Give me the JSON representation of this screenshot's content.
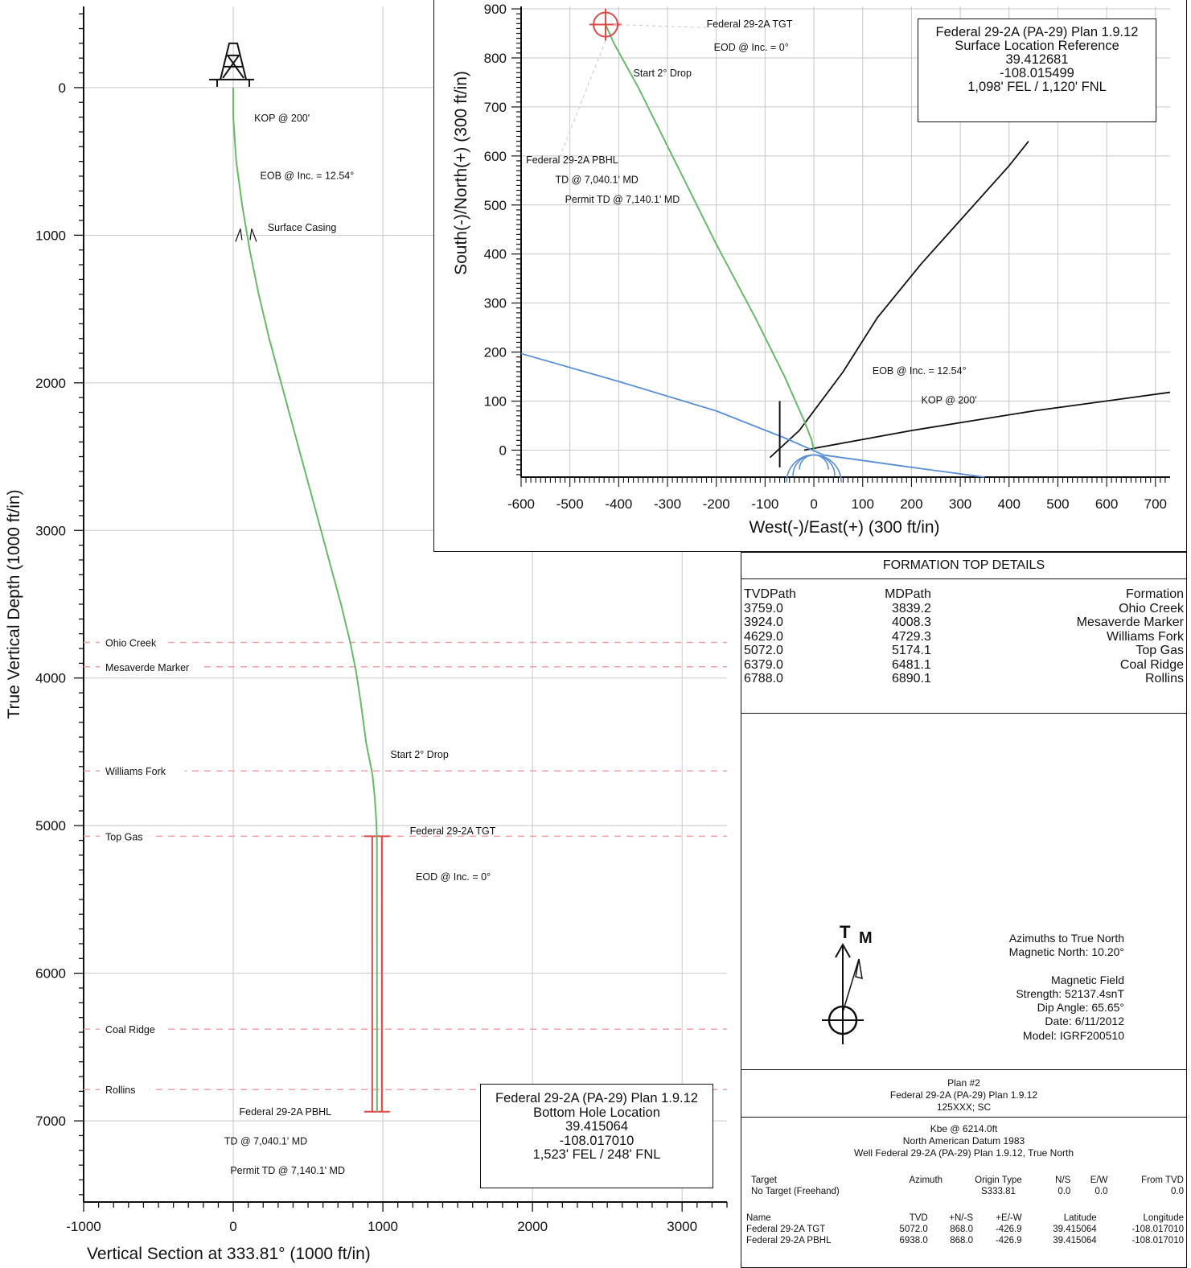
{
  "chart_data": [
    {
      "type": "line",
      "name": "vertical_section",
      "xlabel": "Vertical Section at 333.81° (1000 ft/in)",
      "ylabel": "True Vertical Depth (1000 ft/in)",
      "xlim": [
        -1000,
        3300
      ],
      "ylim": [
        7550,
        -550
      ],
      "y_inverted": true,
      "grid": true,
      "x_ticks": [
        -1000,
        0,
        1000,
        2000,
        3000
      ],
      "y_ticks": [
        0,
        1000,
        2000,
        3000,
        4000,
        5000,
        6000,
        7000
      ],
      "x_tick_labels": [
        "-1000",
        "0",
        "1000",
        "2000",
        "3000"
      ],
      "y_tick_labels": [
        "0",
        "1000",
        "2000",
        "3000",
        "4000",
        "5000",
        "6000",
        "7000"
      ],
      "series": [
        {
          "color": "#6ab96a",
          "x": [
            0,
            0,
            20,
            60,
            110,
            170,
            240,
            320,
            400,
            480,
            560,
            640,
            720,
            780,
            820,
            850,
            870,
            890,
            910,
            930,
            945,
            955,
            960,
            961,
            961
          ],
          "y": [
            0,
            200,
            500,
            800,
            1100,
            1400,
            1700,
            2000,
            2300,
            2600,
            2900,
            3200,
            3500,
            3750,
            3950,
            4150,
            4300,
            4450,
            4550,
            4650,
            4800,
            4950,
            5072,
            6500,
            6938
          ]
        }
      ],
      "formation_lines": [
        {
          "label": "Ohio Creek",
          "tvd": 3759
        },
        {
          "label": "Mesaverde Marker",
          "tvd": 3924
        },
        {
          "label": "Williams Fork",
          "tvd": 4629
        },
        {
          "label": "Top Gas",
          "tvd": 5072
        },
        {
          "label": "Coal Ridge",
          "tvd": 6379
        },
        {
          "label": "Rollins",
          "tvd": 6788
        }
      ],
      "annotations": [
        {
          "text": "KOP @ 200'",
          "x": 140,
          "y": 230
        },
        {
          "text": "EOB @ Inc. = 12.54°",
          "x": 180,
          "y": 620
        },
        {
          "text": "Surface Casing",
          "x": 230,
          "y": 970
        },
        {
          "text": "Start 2° Drop",
          "x": 1050,
          "y": 4540
        },
        {
          "text": "Federal 29-2A TGT",
          "x": 1180,
          "y": 5060
        },
        {
          "text": "EOD @ Inc. = 0°",
          "x": 1220,
          "y": 5370
        },
        {
          "text": "Federal 29-2A PBHL",
          "x": 40,
          "y": 6960
        },
        {
          "text": "TD @ 7,040.1' MD",
          "x": -60,
          "y": 7160
        },
        {
          "text": "Permit TD @ 7,140.1' MD",
          "x": -20,
          "y": 7360
        }
      ],
      "target_x": 961,
      "target_y_top": 5072,
      "target_y_bottom": 6938
    },
    {
      "type": "line",
      "name": "plan_view",
      "xlabel": "West(-)/East(+) (300 ft/in)",
      "ylabel": "South(-)/North(+) (300 ft/in)",
      "xlim": [
        -600,
        730
      ],
      "ylim": [
        -55,
        905
      ],
      "grid": true,
      "x_ticks": [
        -600,
        -500,
        -400,
        -300,
        -200,
        -100,
        0,
        100,
        200,
        300,
        400,
        500,
        600,
        700
      ],
      "y_ticks": [
        0,
        100,
        200,
        300,
        400,
        500,
        600,
        700,
        800,
        900
      ],
      "x_tick_labels": [
        "-600",
        "-500",
        "-400",
        "-300",
        "-200",
        "-100",
        "0",
        "100",
        "200",
        "300",
        "400",
        "500",
        "600",
        "700"
      ],
      "y_tick_labels": [
        "0",
        "100",
        "200",
        "300",
        "400",
        "500",
        "600",
        "700",
        "800",
        "900"
      ],
      "series": [
        {
          "color": "#6ab96a",
          "x": [
            0,
            -5,
            -20,
            -60,
            -120,
            -200,
            -280,
            -360,
            -410,
            -426.9
          ],
          "y": [
            0,
            22,
            60,
            150,
            270,
            420,
            580,
            740,
            830,
            868
          ]
        }
      ],
      "lease_lines": [
        {
          "color": "#111111",
          "x": [
            -90,
            -30,
            60,
            130,
            220,
            310,
            400,
            440
          ],
          "y": [
            -15,
            40,
            160,
            270,
            380,
            480,
            580,
            630
          ]
        },
        {
          "color": "#111111",
          "x": [
            -20,
            200,
            450,
            730
          ],
          "y": [
            0,
            40,
            80,
            118
          ]
        },
        {
          "color": "#5a8fd6",
          "x": [
            -600,
            -400,
            -200,
            -60,
            20,
            200,
            350
          ],
          "y": [
            197,
            140,
            80,
            25,
            -10,
            -35,
            -55
          ]
        }
      ],
      "annotations": [
        {
          "text": "Federal 29-2A TGT",
          "x": -220,
          "y": 862
        },
        {
          "text": "EOD @ Inc. = 0°",
          "x": -205,
          "y": 815
        },
        {
          "text": "Start 2° Drop",
          "x": -370,
          "y": 762
        },
        {
          "text": "Federal 29-2A PBHL",
          "x": -590,
          "y": 585
        },
        {
          "text": "TD @ 7,040.1' MD",
          "x": -530,
          "y": 545
        },
        {
          "text": "Permit TD @ 7,140.1' MD",
          "x": -510,
          "y": 505
        },
        {
          "text": "EOB @ Inc. = 12.54°",
          "x": 120,
          "y": 155
        },
        {
          "text": "KOP @ 200'",
          "x": 220,
          "y": 95
        }
      ],
      "target_x": -426.9,
      "target_y": 868
    }
  ],
  "surface_box": {
    "title": "Federal 29-2A (PA-29) Plan 1.9.12",
    "subtitle": "Surface Location Reference",
    "lat": "39.412681",
    "lon": "-108.015499",
    "location": "1,098' FEL / 1,120' FNL"
  },
  "bottom_box": {
    "title": "Federal 29-2A (PA-29) Plan 1.9.12",
    "subtitle": "Bottom Hole Location",
    "lat": "39.415064",
    "lon": "-108.017010",
    "location": "1,523' FEL / 248' FNL"
  },
  "formation_table": {
    "title": "FORMATION TOP DETAILS",
    "headers": [
      "TVDPath",
      "MDPath",
      "Formation"
    ],
    "rows": [
      [
        "3759.0",
        "3839.2",
        "Ohio Creek"
      ],
      [
        "3924.0",
        "4008.3",
        "Mesaverde Marker"
      ],
      [
        "4629.0",
        "4729.3",
        "Williams Fork"
      ],
      [
        "5072.0",
        "5174.1",
        "Top Gas"
      ],
      [
        "6379.0",
        "6481.1",
        "Coal Ridge"
      ],
      [
        "6788.0",
        "6890.1",
        "Rollins"
      ]
    ]
  },
  "north_arrow": {
    "true_label": "T",
    "magnetic_label": "M",
    "lines": [
      "Azimuths to True North",
      "Magnetic North: 10.20°",
      "",
      "Magnetic Field",
      "Strength: 52137.4snT",
      "Dip Angle: 65.65°",
      "Date: 6/11/2012",
      "Model: IGRF200510"
    ]
  },
  "plan_info": {
    "line1": "Plan #2",
    "line2": "Federal 29-2A (PA-29) Plan 1.9.12",
    "line3": "125XXX; SC"
  },
  "datum_info": {
    "line1": "Kbe @ 6214.0ft",
    "line2": "North American Datum 1983",
    "line3": "Well Federal 29-2A (PA-29) Plan 1.9.12, True North"
  },
  "target_table": {
    "headers": [
      "Target",
      "Azimuth",
      "Origin Type",
      "N/S",
      "E/W",
      "From TVD"
    ],
    "rows": [
      [
        "No Target (Freehand)",
        "",
        "S333.81",
        "0.0",
        "0.0",
        "0.0"
      ]
    ]
  },
  "name_table": {
    "headers": [
      "Name",
      "TVD",
      "+N/-S",
      "+E/-W",
      "Latitude",
      "Longitude"
    ],
    "rows": [
      [
        "Federal 29-2A TGT",
        "5072.0",
        "868.0",
        "-426.9",
        "39.415064",
        "-108.017010"
      ],
      [
        "Federal 29-2A PBHL",
        "6938.0",
        "868.0",
        "-426.9",
        "39.415064",
        "-108.017010"
      ]
    ]
  }
}
